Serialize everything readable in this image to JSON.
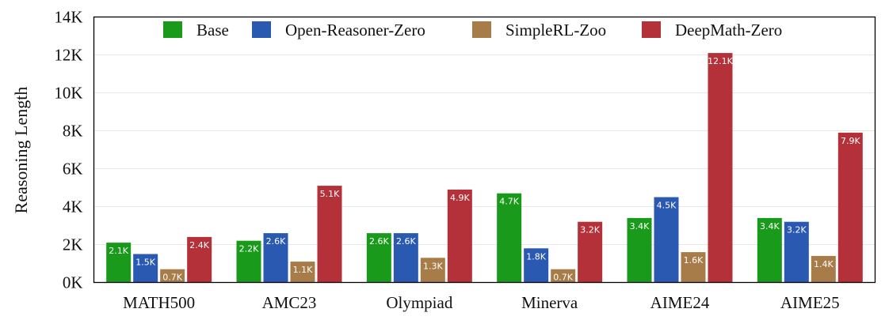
{
  "chart_data": {
    "type": "bar",
    "title": "",
    "xlabel": "",
    "ylabel": "Reasoning Length",
    "ylim": [
      0,
      14000
    ],
    "yticks": [
      0,
      2000,
      4000,
      6000,
      8000,
      10000,
      12000,
      14000
    ],
    "ytick_labels": [
      "0K",
      "2K",
      "4K",
      "6K",
      "8K",
      "10K",
      "12K",
      "14K"
    ],
    "grid": true,
    "legend_position": "top",
    "categories": [
      "MATH500",
      "AMC23",
      "Olympiad",
      "Minerva",
      "AIME24",
      "AIME25"
    ],
    "series": [
      {
        "name": "Base",
        "color": "#1a9a1a",
        "values": [
          2100,
          2200,
          2600,
          4700,
          3400,
          3400
        ],
        "labels": [
          "2.1K",
          "2.2K",
          "2.6K",
          "4.7K",
          "3.4K",
          "3.4K"
        ]
      },
      {
        "name": "Open-Reasoner-Zero",
        "color": "#2a59b2",
        "values": [
          1500,
          2600,
          2600,
          1800,
          4500,
          3200
        ],
        "labels": [
          "1.5K",
          "2.6K",
          "2.6K",
          "1.8K",
          "4.5K",
          "3.2K"
        ]
      },
      {
        "name": "SimpleRL-Zoo",
        "color": "#a87c48",
        "values": [
          700,
          1100,
          1300,
          700,
          1600,
          1400
        ],
        "labels": [
          "0.7K",
          "1.1K",
          "1.3K",
          "0.7K",
          "1.6K",
          "1.4K"
        ]
      },
      {
        "name": "DeepMath-Zero",
        "color": "#b5313a",
        "values": [
          2400,
          5100,
          4900,
          3200,
          12100,
          7900
        ],
        "labels": [
          "2.4K",
          "5.1K",
          "4.9K",
          "3.2K",
          "12.1K",
          "7.9K"
        ]
      }
    ]
  }
}
